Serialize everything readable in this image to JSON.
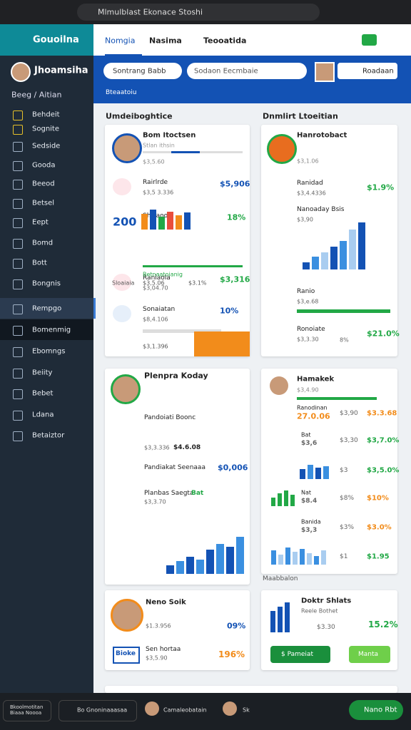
{
  "browser": {
    "address": "Mlmulblast Ekonace Stoshi"
  },
  "sidebar": {
    "brand": "Gouoilna",
    "user": "Jhoamsiha",
    "section": "Beeg / Aitian",
    "items": [
      "Behdeit",
      "Sognite",
      "Sedside",
      "Gooda",
      "Beeod",
      "Betsel",
      "Eept",
      "Bomd",
      "Bott",
      "Bongnis",
      "Rempgo",
      "Bomenmig",
      "Ebomngs",
      "Beiity",
      "Bebet",
      "Ldana",
      "Betaiztor"
    ]
  },
  "header": {
    "tabs": [
      "Nomgia",
      "Nasima",
      "Teooatida"
    ],
    "dropdown": "Sontrang Babb",
    "search": "Sodaon Eecmbaie",
    "button": "Roadaan",
    "breadcrumb": "Bteaatoiu"
  },
  "left": {
    "title": "Umdeiboghtice",
    "card1": {
      "name": "Bom Itoctsen",
      "sub": "Stlan ithsin",
      "amount": "$3,5.60",
      "rows": [
        {
          "title": "Rairlrde",
          "sub": "$3,5 3.336",
          "value": "$5,906"
        },
        {
          "title": "Shsiaoo",
          "sub": "200",
          "value": "18%"
        },
        {
          "title": "Raniaola",
          "sub": "$3,04.70",
          "value": "$3,316"
        },
        {
          "title": "Sonaiatan",
          "sub": "$8,4.106",
          "value": "10%"
        }
      ],
      "extra": [
        "Betnaatoianig",
        "Sloaiaia",
        "$3,5.06",
        "$3.1%",
        "$3,1.396"
      ]
    },
    "card2": {
      "name": "Plenpra Koday",
      "rows": [
        {
          "title": "Pandoiati Boonc",
          "sub": "$3,3.336",
          "value": "$4.6.08"
        },
        {
          "title": "Pandiakat Seenaaa",
          "sub": "",
          "value": "$0,006"
        },
        {
          "title": "Planbas Saegta",
          "sub": "$3,3.70",
          "value": "Bat"
        }
      ]
    },
    "card3": {
      "name": "Neno Soik",
      "sub": "$1.3.956",
      "value": "09%",
      "badge": "Bioke",
      "title2": "Sen hortaa",
      "sub2": "$3,5.90",
      "value2": "196%"
    }
  },
  "right": {
    "title": "Dnmlirt Ltoeitian",
    "card1": {
      "name": "Hanrotobact",
      "sub": "$3,1.06",
      "rows": [
        {
          "title": "Ranidad",
          "sub": "$3,4.4336",
          "value": "$1.9%"
        },
        {
          "title": "Nanoaday Bsis",
          "sub": "$3,90",
          "value": ""
        },
        {
          "title": "Ranio",
          "sub": "$3,e.68",
          "value": ""
        },
        {
          "title": "Ronoiate",
          "sub": "$3,3.30",
          "value": "$21.0%"
        }
      ],
      "mid": "8%"
    },
    "card2": {
      "name": "Hamakek",
      "sub": "$3,4.90",
      "rows": [
        {
          "title": "Ranodinan",
          "sub": "27.0.06",
          "mid": "$3,90",
          "value": "$3.3.68"
        },
        {
          "title": "Bat",
          "sub": "$3,6",
          "mid": "$3,30",
          "value": "$3,7.0%"
        },
        {
          "title": "",
          "sub": "",
          "mid": "$3",
          "value": "$3,5.0%"
        },
        {
          "title": "Nat",
          "sub": "$8.4",
          "mid": "$8%",
          "value": "$10%"
        },
        {
          "title": "Banida",
          "sub": "$3,3",
          "mid": "$3%",
          "value": "$3.0%"
        },
        {
          "title": "",
          "sub": "",
          "mid": "$1",
          "value": "$1.95"
        }
      ]
    },
    "label": "Maabbalon",
    "card3": {
      "name": "Doktr Shlats",
      "sub": "Reele Bothet",
      "mid": "$3.30",
      "value": "15.2%",
      "buttons": [
        "$ Pameiat",
        "Manta"
      ]
    }
  },
  "footer": {
    "items": [
      "Bkoolmotitan Biaaa Noooa",
      "Bo Gnoninaaasaa",
      "Camaleobatain",
      "Sk"
    ],
    "button": "Nano Rbt"
  }
}
